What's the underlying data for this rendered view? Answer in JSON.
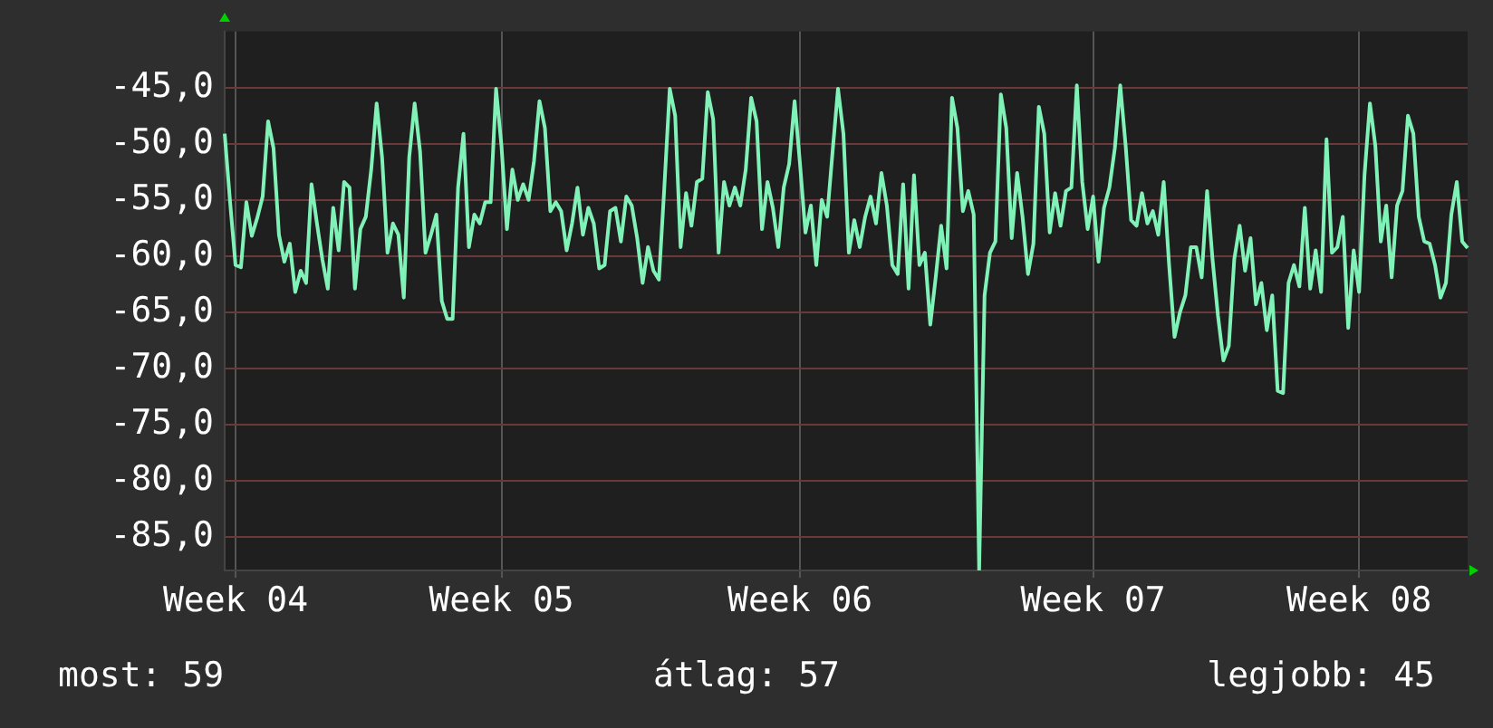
{
  "chart_data": {
    "type": "line",
    "categories": [
      null,
      null,
      "Week 04",
      null,
      null,
      null,
      null,
      null,
      null,
      null,
      null,
      null,
      null,
      null,
      null,
      null,
      null,
      null,
      null,
      null,
      null,
      null,
      null,
      null,
      null,
      null,
      null,
      null,
      null,
      null,
      null,
      null,
      null,
      null,
      null,
      null,
      null,
      null,
      null,
      null,
      null,
      null,
      null,
      null,
      null,
      null,
      null,
      null,
      null,
      null,
      null,
      "Week 05",
      null,
      null,
      null,
      null,
      null,
      null,
      null,
      null,
      null,
      null,
      null,
      null,
      null,
      null,
      null,
      null,
      null,
      null,
      null,
      null,
      null,
      null,
      null,
      null,
      null,
      null,
      null,
      null,
      null,
      null,
      null,
      null,
      null,
      null,
      null,
      null,
      null,
      null,
      null,
      null,
      null,
      null,
      null,
      null,
      null,
      null,
      null,
      null,
      null,
      null,
      null,
      null,
      null,
      null,
      "Week 06",
      null,
      null,
      null,
      null,
      null,
      null,
      null,
      null,
      null,
      null,
      null,
      null,
      null,
      null,
      null,
      null,
      null,
      null,
      null,
      null,
      null,
      null,
      null,
      null,
      null,
      null,
      null,
      null,
      null,
      null,
      null,
      null,
      null,
      null,
      null,
      null,
      null,
      null,
      null,
      null,
      null,
      null,
      null,
      null,
      null,
      null,
      null,
      null,
      null,
      null,
      null,
      null,
      null,
      "Week 07",
      null,
      null,
      null,
      null,
      null,
      null,
      null,
      null,
      null,
      null,
      null,
      null,
      null,
      null,
      null,
      null,
      null,
      null,
      null,
      null,
      null,
      null,
      null,
      null,
      null,
      null,
      null,
      null,
      null,
      null,
      null,
      null,
      null,
      null,
      null,
      null,
      null,
      null,
      null,
      null,
      null,
      null,
      null,
      null,
      null,
      null,
      null,
      null,
      "Week 08",
      null,
      null,
      null,
      null,
      null,
      null,
      null,
      null,
      null,
      null,
      null,
      null,
      null,
      null,
      null,
      null,
      null,
      null,
      null,
      null
    ],
    "series": [
      {
        "color": "#80f2b8",
        "values": [
          -49.1,
          -55.2,
          -60.8,
          -61.0,
          -55.2,
          -58.2,
          -56.6,
          -54.7,
          -48.0,
          -50.4,
          -58.1,
          -60.5,
          -58.9,
          -63.2,
          -61.3,
          -62.4,
          -53.6,
          -57.1,
          -60.3,
          -62.9,
          -55.7,
          -59.5,
          -53.4,
          -53.9,
          -62.9,
          -57.6,
          -56.5,
          -52.3,
          -46.4,
          -51.2,
          -59.7,
          -57.1,
          -58.1,
          -63.7,
          -51.2,
          -46.4,
          -50.7,
          -59.7,
          -58.1,
          -56.3,
          -64.0,
          -65.6,
          -65.6,
          -53.9,
          -49.1,
          -59.2,
          -56.3,
          -57.1,
          -55.2,
          -55.2,
          -45.1,
          -50.2,
          -57.6,
          -52.3,
          -55.0,
          -53.6,
          -55.0,
          -51.5,
          -46.2,
          -48.6,
          -56.0,
          -55.2,
          -56.0,
          -59.5,
          -57.1,
          -53.9,
          -58.1,
          -55.7,
          -57.1,
          -61.1,
          -60.8,
          -56.0,
          -55.7,
          -58.7,
          -54.7,
          -55.5,
          -58.4,
          -62.4,
          -59.2,
          -61.3,
          -62.1,
          -53.9,
          -45.1,
          -47.5,
          -59.2,
          -54.4,
          -57.3,
          -53.4,
          -53.1,
          -45.4,
          -47.8,
          -59.7,
          -53.4,
          -55.5,
          -53.9,
          -55.5,
          -52.3,
          -45.9,
          -48.0,
          -57.6,
          -53.4,
          -55.7,
          -59.2,
          -53.9,
          -51.8,
          -46.2,
          -51.8,
          -57.9,
          -55.5,
          -60.8,
          -55.0,
          -56.5,
          -50.7,
          -45.1,
          -49.1,
          -59.7,
          -56.8,
          -59.2,
          -56.5,
          -54.7,
          -57.1,
          -52.6,
          -55.5,
          -60.8,
          -61.6,
          -53.6,
          -62.9,
          -52.8,
          -60.8,
          -59.7,
          -66.1,
          -61.9,
          -57.3,
          -61.1,
          -45.9,
          -48.6,
          -56.0,
          -54.2,
          -56.3,
          -88.0,
          -63.5,
          -59.7,
          -58.7,
          -45.6,
          -48.6,
          -58.4,
          -52.6,
          -56.5,
          -61.6,
          -58.9,
          -46.7,
          -49.1,
          -57.9,
          -54.4,
          -57.3,
          -54.2,
          -53.9,
          -44.8,
          -53.4,
          -57.6,
          -54.7,
          -60.5,
          -55.7,
          -53.9,
          -50.4,
          -44.8,
          -50.2,
          -56.8,
          -57.3,
          -54.4,
          -57.1,
          -56.0,
          -58.1,
          -53.4,
          -60.8,
          -67.2,
          -65.0,
          -63.5,
          -59.2,
          -59.2,
          -61.9,
          -54.2,
          -60.3,
          -65.3,
          -69.3,
          -68.0,
          -60.3,
          -57.3,
          -61.3,
          -58.4,
          -64.3,
          -62.4,
          -66.6,
          -63.5,
          -72.0,
          -72.2,
          -62.4,
          -60.8,
          -62.7,
          -55.7,
          -62.9,
          -59.5,
          -63.2,
          -49.6,
          -59.7,
          -59.2,
          -56.5,
          -66.4,
          -59.5,
          -63.2,
          -52.8,
          -46.4,
          -50.2,
          -58.7,
          -55.5,
          -61.9,
          -55.5,
          -54.2,
          -47.5,
          -49.1,
          -56.5,
          -58.7,
          -58.9,
          -60.8,
          -63.7,
          -62.4,
          -56.3,
          -53.4,
          -58.7,
          -59.3
        ]
      }
    ],
    "ylim": [
      -88,
      -40
    ],
    "yticks": [
      {
        "value": -85,
        "label": "-85,0"
      },
      {
        "value": -80,
        "label": "-80,0"
      },
      {
        "value": -75,
        "label": "-75,0"
      },
      {
        "value": -70,
        "label": "-70,0"
      },
      {
        "value": -65,
        "label": "-65,0"
      },
      {
        "value": -60,
        "label": "-60,0"
      },
      {
        "value": -55,
        "label": "-55,0"
      },
      {
        "value": -50,
        "label": "-50,0"
      },
      {
        "value": -45,
        "label": "-45,0"
      }
    ],
    "grid": true,
    "legend": false,
    "marker": "none",
    "line_style": "solid",
    "annotations": [
      "most: 59",
      "átlag: 57",
      "legjobb: 45"
    ]
  }
}
